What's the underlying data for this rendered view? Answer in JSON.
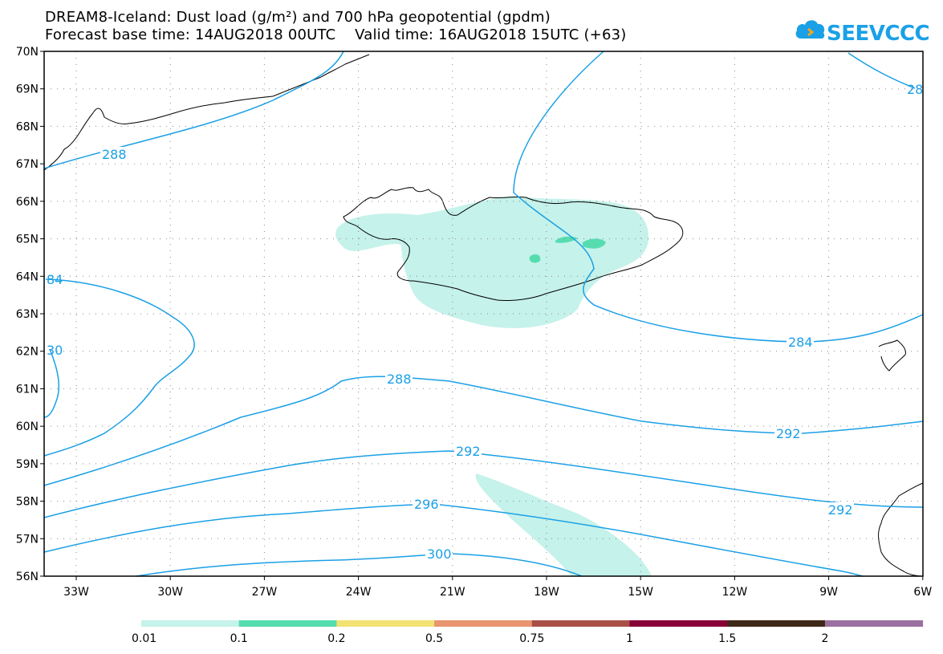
{
  "title": {
    "line1": "DREAM8-Iceland: Dust load (g/m²) and 700 hPa geopotential (gpdm)",
    "line2": "Forecast base time: 14AUG2018 00UTC    Valid time: 16AUG2018 15UTC (+63)"
  },
  "logo": {
    "text": "SEEVCCC",
    "icon": "cloud-icon",
    "color": "#1aa0e6"
  },
  "map": {
    "lat_labels": [
      "70N",
      "69N",
      "68N",
      "67N",
      "66N",
      "65N",
      "64N",
      "63N",
      "62N",
      "61N",
      "60N",
      "59N",
      "58N",
      "57N",
      "56N"
    ],
    "lon_labels": [
      "33W",
      "30W",
      "27W",
      "24W",
      "21W",
      "18W",
      "15W",
      "12W",
      "9W",
      "6W"
    ],
    "contour_labels": [
      "288",
      "284",
      "288",
      "292",
      "292",
      "296",
      "300",
      "84",
      "30",
      "28"
    ]
  },
  "colorbar": {
    "tick_labels": [
      "0.01",
      "0.1",
      "0.2",
      "0.5",
      "0.75",
      "1",
      "1.5",
      "2"
    ],
    "colors": [
      "#c5f2ea",
      "#55ddb0",
      "#f2e272",
      "#e89570",
      "#a85048",
      "#880038",
      "#3e2818",
      "#9a70a0"
    ]
  },
  "colors": {
    "contour": "#1aa0e6",
    "dust_light": "#c5f2ea",
    "dust_medium": "#55ddb0"
  }
}
